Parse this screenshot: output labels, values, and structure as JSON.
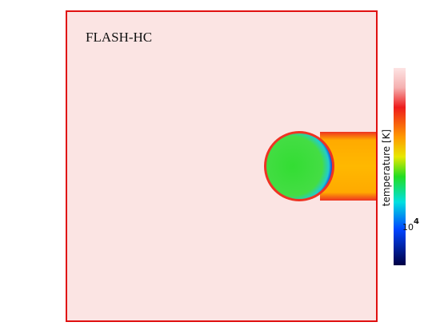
{
  "panel": {
    "label": "FLASH-HC"
  },
  "colorbar": {
    "title": "temperature [K]",
    "tick": {
      "base": "10",
      "exponent": "4"
    }
  }
}
